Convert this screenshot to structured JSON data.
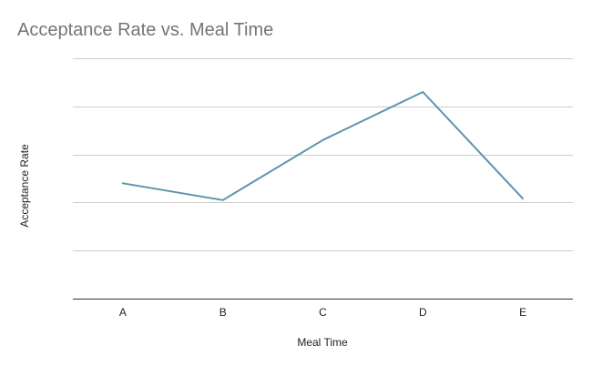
{
  "chart_data": {
    "type": "line",
    "title": "Acceptance Rate vs. Meal Time",
    "xlabel": "Meal Time",
    "ylabel": "Acceptance Rate",
    "categories": [
      "A",
      "B",
      "C",
      "D",
      "E"
    ],
    "series": [
      {
        "values": [
          2.4,
          2.05,
          3.3,
          4.3,
          2.08
        ],
        "color": "#5b95ae"
      }
    ],
    "ylim": [
      0,
      5
    ],
    "y_tick_count": 6,
    "grid": true,
    "y_tick_labels_shown": false,
    "legend": "none"
  }
}
